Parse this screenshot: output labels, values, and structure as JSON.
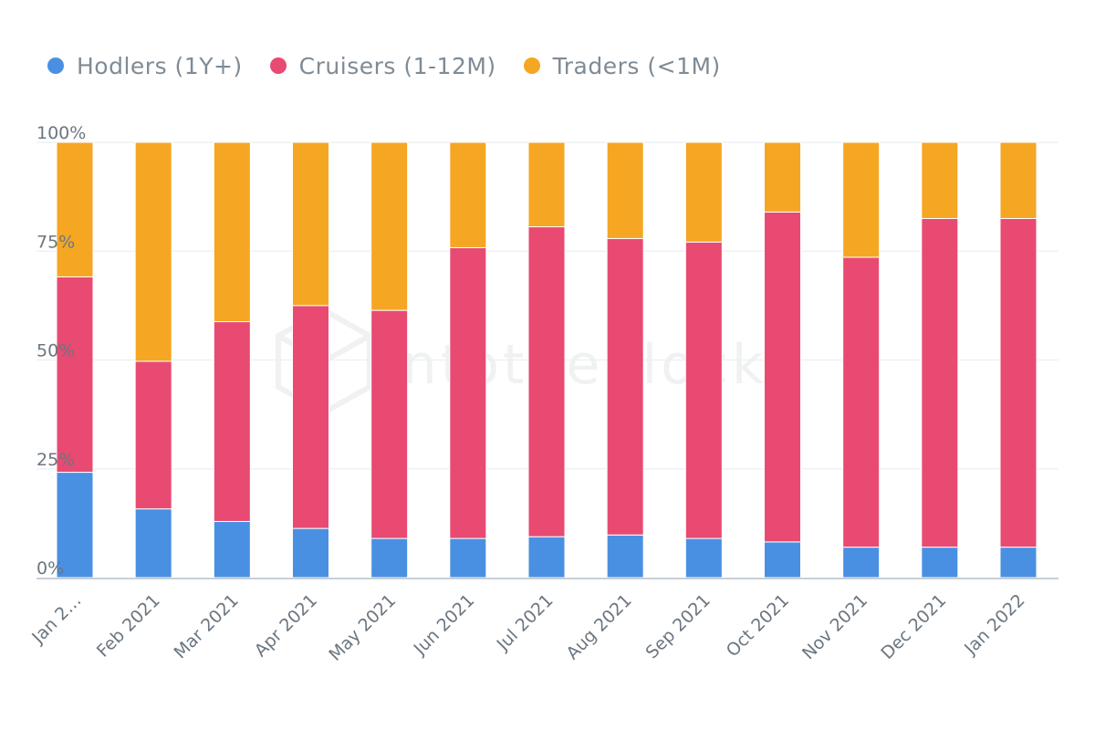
{
  "legend": [
    {
      "name": "Hodlers (1Y+)",
      "color": "#4a90e2"
    },
    {
      "name": "Cruisers (1-12M)",
      "color": "#e84a72"
    },
    {
      "name": "Traders (<1M)",
      "color": "#f5a623"
    }
  ],
  "watermark": "intotheblock",
  "chart_data": {
    "type": "bar",
    "stacked": true,
    "categories": [
      "Jan 2…",
      "Feb 2021",
      "Mar 2021",
      "Apr 2021",
      "May 2021",
      "Jun 2021",
      "Jul 2021",
      "Aug 2021",
      "Sep 2021",
      "Oct 2021",
      "Nov 2021",
      "Dec 2021",
      "Jan 2022"
    ],
    "series": [
      {
        "name": "Hodlers (1Y+)",
        "color": "#4a90e2",
        "values": [
          24.2,
          15.8,
          12.9,
          11.3,
          9.0,
          9.0,
          9.4,
          9.8,
          9.0,
          8.2,
          7.0,
          7.0,
          7.0
        ]
      },
      {
        "name": "Cruisers (1-12M)",
        "color": "#e84a72",
        "values": [
          44.9,
          33.9,
          45.9,
          51.2,
          52.4,
          66.8,
          71.2,
          68.1,
          68.1,
          75.8,
          66.6,
          75.5,
          75.5
        ]
      },
      {
        "name": "Traders (<1M)",
        "color": "#f5a623",
        "values": [
          30.9,
          50.3,
          41.2,
          37.5,
          38.6,
          24.2,
          19.4,
          22.1,
          22.9,
          16.0,
          26.4,
          17.5,
          17.5
        ]
      }
    ],
    "ylim": [
      0,
      100
    ],
    "yticks": [
      "0%",
      "25%",
      "50%",
      "75%",
      "100%"
    ],
    "ytick_values": [
      0,
      25,
      50,
      75,
      100
    ],
    "grid": true,
    "legend_position": "top-left"
  }
}
